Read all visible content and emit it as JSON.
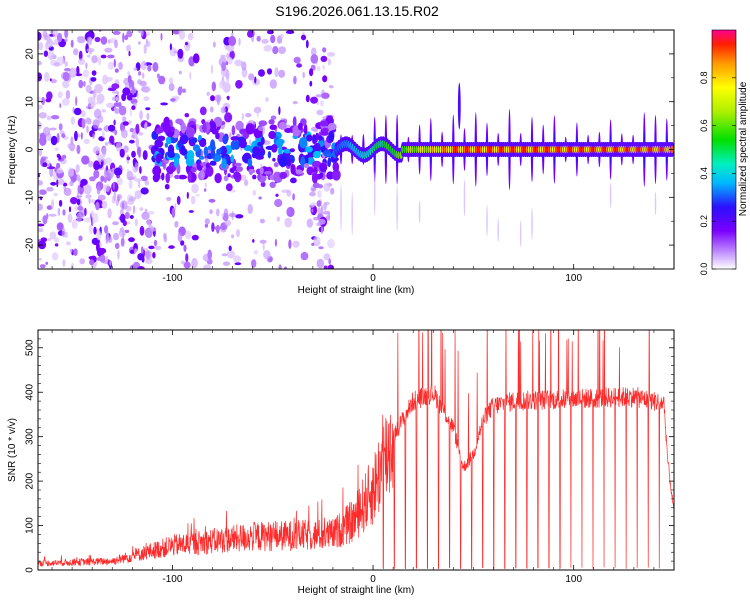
{
  "page": {
    "title": "S196.2026.061.13.15.R02"
  },
  "chart_data": [
    {
      "type": "heatmap",
      "title": "S196.2026.061.13.15.R02",
      "xlabel": "Height of straight line (km)",
      "ylabel": "Frequency (Hz)",
      "xlim": [
        -167,
        150
      ],
      "ylim": [
        -25,
        25
      ],
      "xticks": [
        -100,
        0,
        100
      ],
      "xtick_labels": [
        "-100",
        "0",
        "100"
      ],
      "yticks": [
        -20,
        -10,
        0,
        10,
        20
      ],
      "ytick_labels": [
        "-20",
        "-10",
        "0",
        "10",
        "20"
      ],
      "colorbar": {
        "label": "Normalized spectral amplitude",
        "range": [
          0,
          1
        ],
        "ticks": [
          0.0,
          0.2,
          0.4,
          0.6,
          0.8
        ],
        "tick_labels": [
          "0.0",
          "0.2",
          "0.4",
          "0.6",
          "0.8"
        ]
      },
      "features": {
        "carrier_frequency_hz": 0,
        "carrier_start_km": -18,
        "carrier_peak_amplitude": 0.95,
        "spike_at_km": 43,
        "spike_max_hz": 14,
        "gap_bands_km": [
          [
            -75,
            -70
          ],
          [
            -30,
            -20
          ]
        ],
        "noise_region_km": [
          -167,
          -20
        ]
      }
    },
    {
      "type": "line",
      "xlabel": "Height of straight line (km)",
      "ylabel": "SNR (10 * v/v)",
      "xlim": [
        -167,
        150
      ],
      "ylim": [
        0,
        540
      ],
      "xticks": [
        -100,
        0,
        100
      ],
      "xtick_labels": [
        "-100",
        "0",
        "100"
      ],
      "yticks": [
        0,
        100,
        200,
        300,
        400,
        500
      ],
      "ytick_labels": [
        "0",
        "100",
        "200",
        "300",
        "400",
        "500"
      ],
      "series": [
        {
          "name": "SNR",
          "color": "#ff2a2a",
          "profile_km": [
            -167,
            -130,
            -100,
            -60,
            -20,
            -10,
            0,
            5,
            10,
            20,
            30,
            40,
            45,
            50,
            55,
            60,
            70,
            100,
            130,
            145,
            147,
            150
          ],
          "profile_snr": [
            15,
            20,
            55,
            75,
            80,
            110,
            180,
            240,
            300,
            380,
            400,
            320,
            230,
            260,
            340,
            370,
            380,
            385,
            390,
            375,
            240,
            130
          ],
          "dropout_start_km": 5,
          "dropout_spacing_km": 5.5
        }
      ]
    }
  ]
}
